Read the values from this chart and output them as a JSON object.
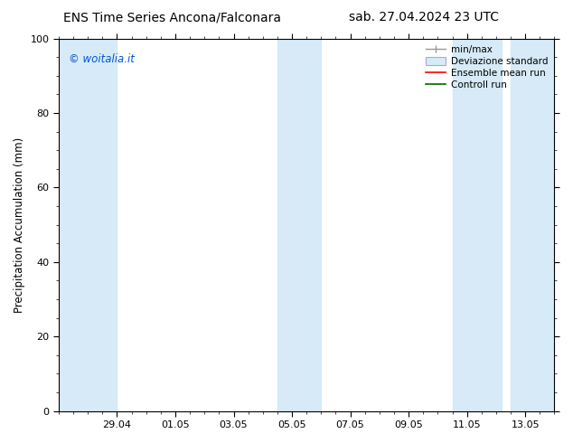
{
  "title_left": "ENS Time Series Ancona/Falconara",
  "title_right": "sab. 27.04.2024 23 UTC",
  "ylabel": "Precipitation Accumulation (mm)",
  "watermark": "© woitalia.it",
  "watermark_color": "#0055cc",
  "ylim": [
    0,
    100
  ],
  "yticks": [
    0,
    20,
    40,
    60,
    80,
    100
  ],
  "xtick_labels": [
    "29.04",
    "01.05",
    "03.05",
    "05.05",
    "07.05",
    "09.05",
    "11.05",
    "13.05"
  ],
  "tick_positions": [
    2,
    4,
    6,
    8,
    10,
    12,
    14,
    16
  ],
  "xlim": [
    0,
    17
  ],
  "shaded": [
    [
      0.0,
      2.0
    ],
    [
      7.5,
      9.0
    ],
    [
      13.5,
      15.2
    ],
    [
      15.5,
      17.0
    ]
  ],
  "shaded_color": "#d6eaf8",
  "bg_color": "#ffffff",
  "font_size_title": 10,
  "font_size_labels": 8.5,
  "font_size_ticks": 8,
  "font_size_watermark": 8.5,
  "font_size_legend": 7.5,
  "legend_minmax_color": "#999999",
  "legend_dev_color": "#d6eaf8",
  "legend_dev_edge": "#aaaacc",
  "legend_ens_color": "#ff0000",
  "legend_ctrl_color": "#006600"
}
